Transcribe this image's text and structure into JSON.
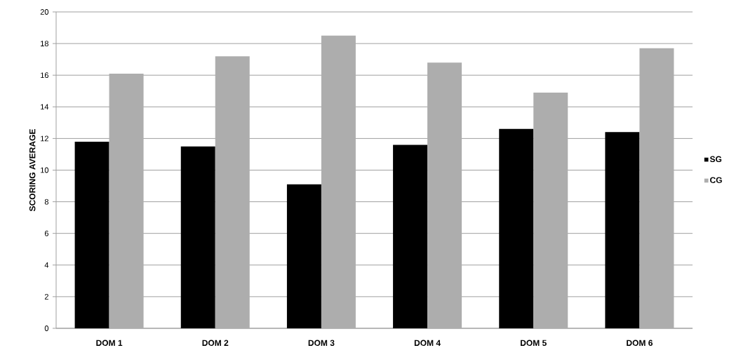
{
  "chart_data": {
    "type": "bar",
    "ylabel": "SCORING AVERAGE",
    "categories": [
      "DOM 1",
      "DOM 2",
      "DOM 3",
      "DOM 4",
      "DOM 5",
      "DOM 6"
    ],
    "series": [
      {
        "name": "SG",
        "color": "#000000",
        "values": [
          11.8,
          11.5,
          9.1,
          11.6,
          12.6,
          12.4
        ]
      },
      {
        "name": "CG",
        "color": "#adadad",
        "values": [
          16.1,
          17.2,
          18.5,
          16.8,
          14.9,
          17.7
        ]
      }
    ],
    "ylim": [
      0,
      20
    ],
    "yticks": [
      0,
      2,
      4,
      6,
      8,
      10,
      12,
      14,
      16,
      18,
      20
    ],
    "grid": "y",
    "legend": "right"
  }
}
